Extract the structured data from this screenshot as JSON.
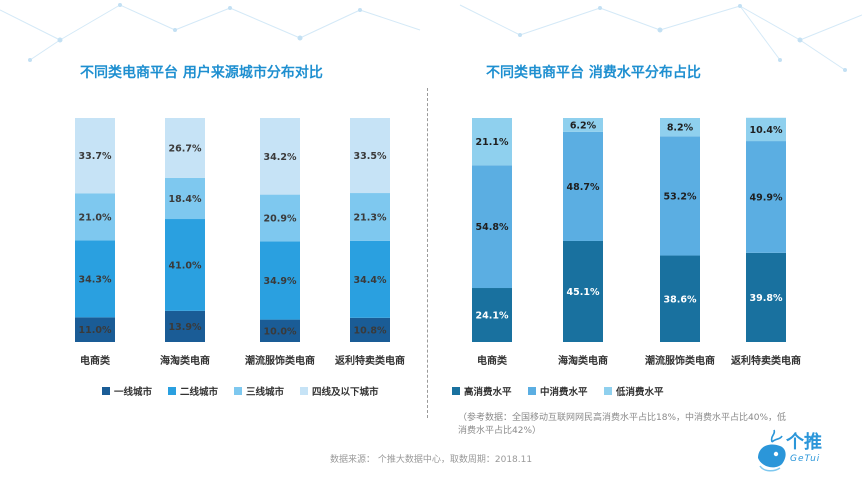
{
  "header": {
    "left_title": "不同类电商平台 用户来源城市分布对比",
    "right_title": "不同类电商平台 消费水平分布占比"
  },
  "chart_data": [
    {
      "type": "bar",
      "stacked": true,
      "normalized": true,
      "title": "不同类电商平台 用户来源城市分布对比",
      "categories": [
        "电商类",
        "海淘类电商",
        "潮流服饰类电商",
        "返利特卖类电商"
      ],
      "series": [
        {
          "name": "一线城市",
          "color": "#1a5c96",
          "values": [
            11.0,
            13.9,
            10.0,
            10.8
          ],
          "labels": [
            "11.0%",
            "13.9%",
            "10.0%",
            "10.8%"
          ]
        },
        {
          "name": "二线城市",
          "color": "#2aa0e0",
          "values": [
            34.3,
            41.0,
            34.9,
            34.4
          ],
          "labels": [
            "34.3%",
            "41.0%",
            "34.9%",
            "34.4%"
          ]
        },
        {
          "name": "三线城市",
          "color": "#7ec8ef",
          "values": [
            21.0,
            18.4,
            20.9,
            21.3
          ],
          "labels": [
            "21.0%",
            "18.4%",
            "20.9%",
            "21.3%"
          ]
        },
        {
          "name": "四线及以下城市",
          "color": "#c6e3f6",
          "values": [
            33.7,
            26.7,
            34.2,
            33.5
          ],
          "labels": [
            "33.7%",
            "26.7%",
            "34.2%",
            "33.5%"
          ]
        }
      ],
      "legend": "bottom"
    },
    {
      "type": "bar",
      "stacked": true,
      "normalized": true,
      "title": "不同类电商平台 消费水平分布占比",
      "categories": [
        "电商类",
        "海淘类电商",
        "潮流服饰类电商",
        "返利特卖类电商"
      ],
      "series": [
        {
          "name": "高消费水平",
          "color": "#19719f",
          "values": [
            24.1,
            45.1,
            38.6,
            39.8
          ],
          "labels": [
            "24.1%",
            "45.1%",
            "38.6%",
            "39.8%"
          ]
        },
        {
          "name": "中消费水平",
          "color": "#5baee2",
          "values": [
            54.8,
            48.7,
            53.2,
            49.9
          ],
          "labels": [
            "54.8%",
            "48.7%",
            "53.2%",
            "49.9%"
          ]
        },
        {
          "name": "低消费水平",
          "color": "#8fd0ee",
          "values": [
            21.1,
            6.2,
            8.2,
            10.4
          ],
          "labels": [
            "21.1%",
            "6.2%",
            "8.2%",
            "10.4%"
          ]
        }
      ],
      "legend": "bottom"
    }
  ],
  "footer": {
    "note": "（参考数据：全国移动互联网网民高消费水平占比18%，中消费水平占比40%，低消费水平占比42%）",
    "source": "数据来源： 个推大数据中心，取数周期：2018.11",
    "logo_text": "个推",
    "logo_sub": "GeTui"
  }
}
